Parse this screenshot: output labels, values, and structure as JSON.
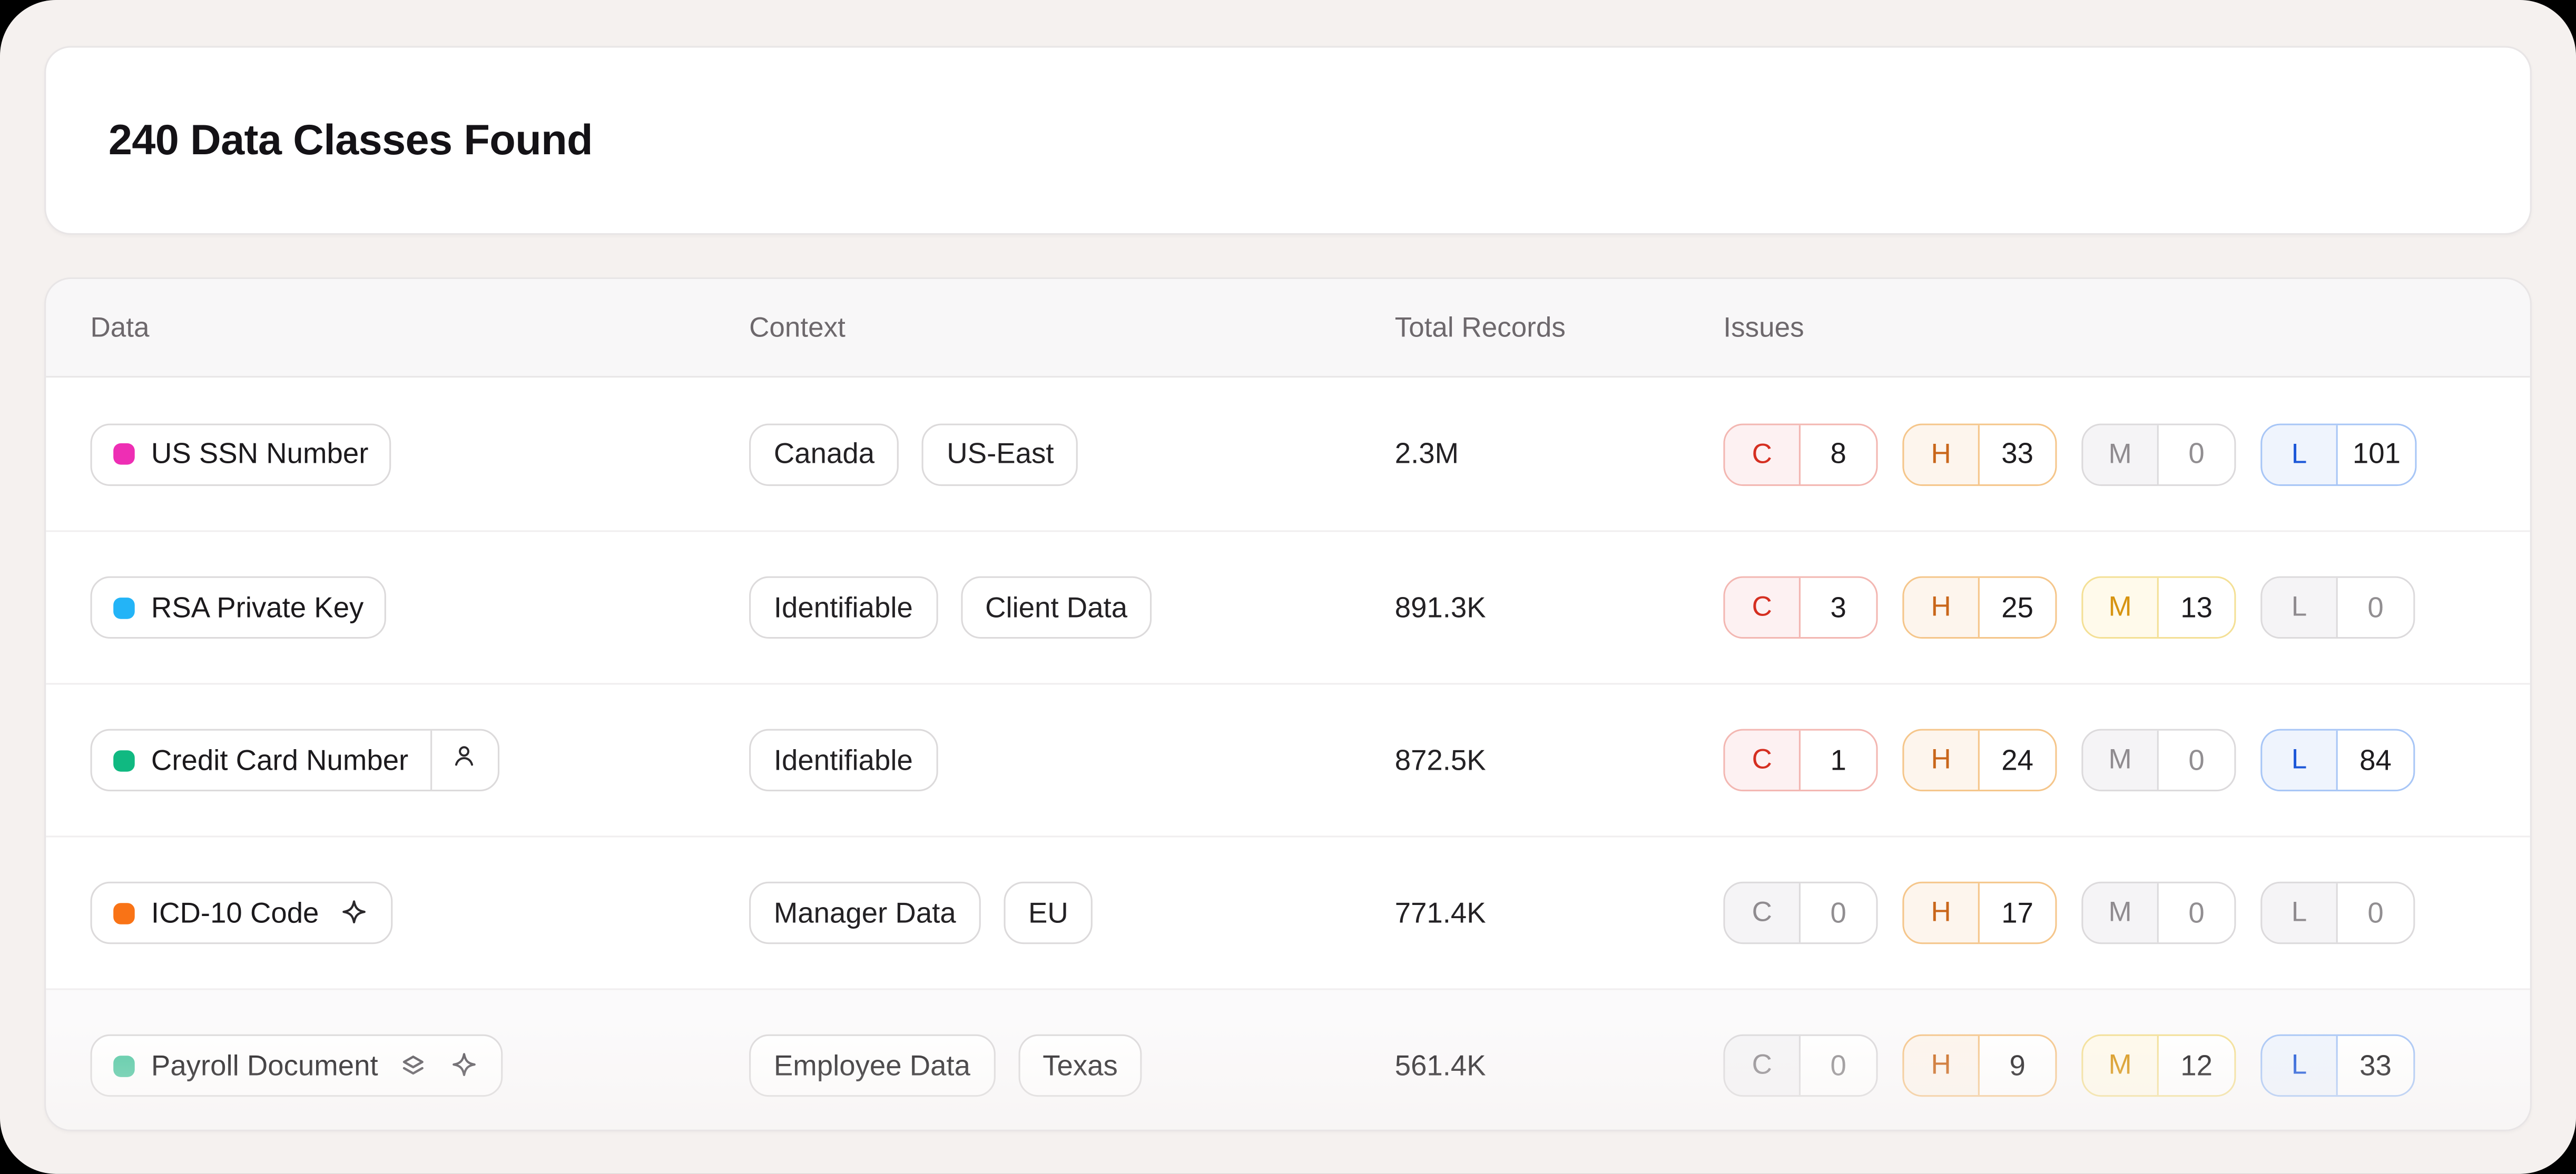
{
  "summary": {
    "title": "240 Data Classes Found"
  },
  "table": {
    "columns": [
      "Data",
      "Context",
      "Total Records",
      "Issues"
    ],
    "rows": [
      {
        "data": {
          "label": "US SSN Number",
          "dot_color": "#ee2eb4",
          "trailing_icons": [],
          "segment_icon": null
        },
        "context": [
          "Canada",
          "US-East"
        ],
        "total_records": "2.3M",
        "issues": [
          {
            "letter": "C",
            "count": "8",
            "variant": "critical"
          },
          {
            "letter": "H",
            "count": "33",
            "variant": "high"
          },
          {
            "letter": "M",
            "count": "0",
            "variant": "none"
          },
          {
            "letter": "L",
            "count": "101",
            "variant": "low"
          }
        ],
        "faded": false
      },
      {
        "data": {
          "label": "RSA Private Key",
          "dot_color": "#23b4f7",
          "trailing_icons": [],
          "segment_icon": null
        },
        "context": [
          "Identifiable",
          "Client Data"
        ],
        "total_records": "891.3K",
        "issues": [
          {
            "letter": "C",
            "count": "3",
            "variant": "critical"
          },
          {
            "letter": "H",
            "count": "25",
            "variant": "high"
          },
          {
            "letter": "M",
            "count": "13",
            "variant": "medium"
          },
          {
            "letter": "L",
            "count": "0",
            "variant": "none"
          }
        ],
        "faded": false
      },
      {
        "data": {
          "label": "Credit Card Number",
          "dot_color": "#10b981",
          "trailing_icons": [],
          "segment_icon": "person-icon"
        },
        "context": [
          "Identifiable"
        ],
        "total_records": "872.5K",
        "issues": [
          {
            "letter": "C",
            "count": "1",
            "variant": "critical"
          },
          {
            "letter": "H",
            "count": "24",
            "variant": "high"
          },
          {
            "letter": "M",
            "count": "0",
            "variant": "none"
          },
          {
            "letter": "L",
            "count": "84",
            "variant": "low"
          }
        ],
        "faded": false
      },
      {
        "data": {
          "label": "ICD-10 Code",
          "dot_color": "#f97316",
          "trailing_icons": [
            "sparkle-icon"
          ],
          "segment_icon": null
        },
        "context": [
          "Manager Data",
          "EU"
        ],
        "total_records": "771.4K",
        "issues": [
          {
            "letter": "C",
            "count": "0",
            "variant": "none"
          },
          {
            "letter": "H",
            "count": "17",
            "variant": "high"
          },
          {
            "letter": "M",
            "count": "0",
            "variant": "none"
          },
          {
            "letter": "L",
            "count": "0",
            "variant": "none"
          }
        ],
        "faded": false
      },
      {
        "data": {
          "label": "Payroll Document",
          "dot_color": "#54c9a4",
          "trailing_icons": [
            "layers-icon",
            "sparkle-icon"
          ],
          "segment_icon": null
        },
        "context": [
          "Employee Data",
          "Texas"
        ],
        "total_records": "561.4K",
        "issues": [
          {
            "letter": "C",
            "count": "0",
            "variant": "none"
          },
          {
            "letter": "H",
            "count": "9",
            "variant": "high"
          },
          {
            "letter": "M",
            "count": "12",
            "variant": "medium"
          },
          {
            "letter": "L",
            "count": "33",
            "variant": "low"
          }
        ],
        "faded": true
      }
    ]
  },
  "colors": {
    "page_background": "#f5f1ef",
    "card_background": "#ffffff",
    "header_strip": "#f8f7f8",
    "severity_variants": {
      "critical": {
        "border": "#f3b7b2",
        "bg": "#fdf1f2",
        "letter": "#d52f21",
        "count": "#1e1c1f"
      },
      "high": {
        "border": "#f5c68b",
        "bg": "#fdf5ed",
        "letter": "#c9661a",
        "count": "#1e1c1f"
      },
      "medium": {
        "border": "#f4e096",
        "bg": "#fffaeb",
        "letter": "#d79411",
        "count": "#1e1c1f"
      },
      "low": {
        "border": "#a8c6f6",
        "bg": "#eff4fd",
        "letter": "#1c57d8",
        "count": "#1e1c1f"
      },
      "none": {
        "border": "#dcdadc",
        "bg": "#f5f4f6",
        "letter": "#8f8b8f",
        "count": "#918e91"
      }
    }
  }
}
